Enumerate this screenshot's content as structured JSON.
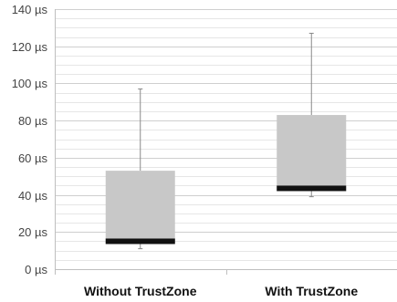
{
  "chart_data": {
    "type": "boxplot",
    "title": "",
    "xlabel": "",
    "ylabel": "",
    "ylim": [
      0,
      140
    ],
    "y_unit": "µs",
    "y_ticks": [
      "0 µs",
      "20 µs",
      "40 µs",
      "60 µs",
      "80 µs",
      "100 µs",
      "120 µs",
      "140 µs"
    ],
    "y_tick_values": [
      0,
      20,
      40,
      60,
      80,
      100,
      120,
      140
    ],
    "y_minor_step": 5,
    "grid": true,
    "legend": "none",
    "categories": [
      "Without TrustZone",
      "With TrustZone"
    ],
    "boxes": [
      {
        "category": "Without TrustZone",
        "min": 11,
        "q1": 14,
        "median": 15,
        "q3": 53,
        "max": 97
      },
      {
        "category": "With TrustZone",
        "min": 39,
        "q1": 42,
        "median": 43.5,
        "q3": 83,
        "max": 127
      }
    ],
    "colors": {
      "box_fill": "#c8c8c8",
      "median": "#111111",
      "whisker": "#888888",
      "grid_major": "#cfcfcf",
      "grid_minor": "#e6e6e6",
      "axis": "#bfbfbf"
    }
  }
}
